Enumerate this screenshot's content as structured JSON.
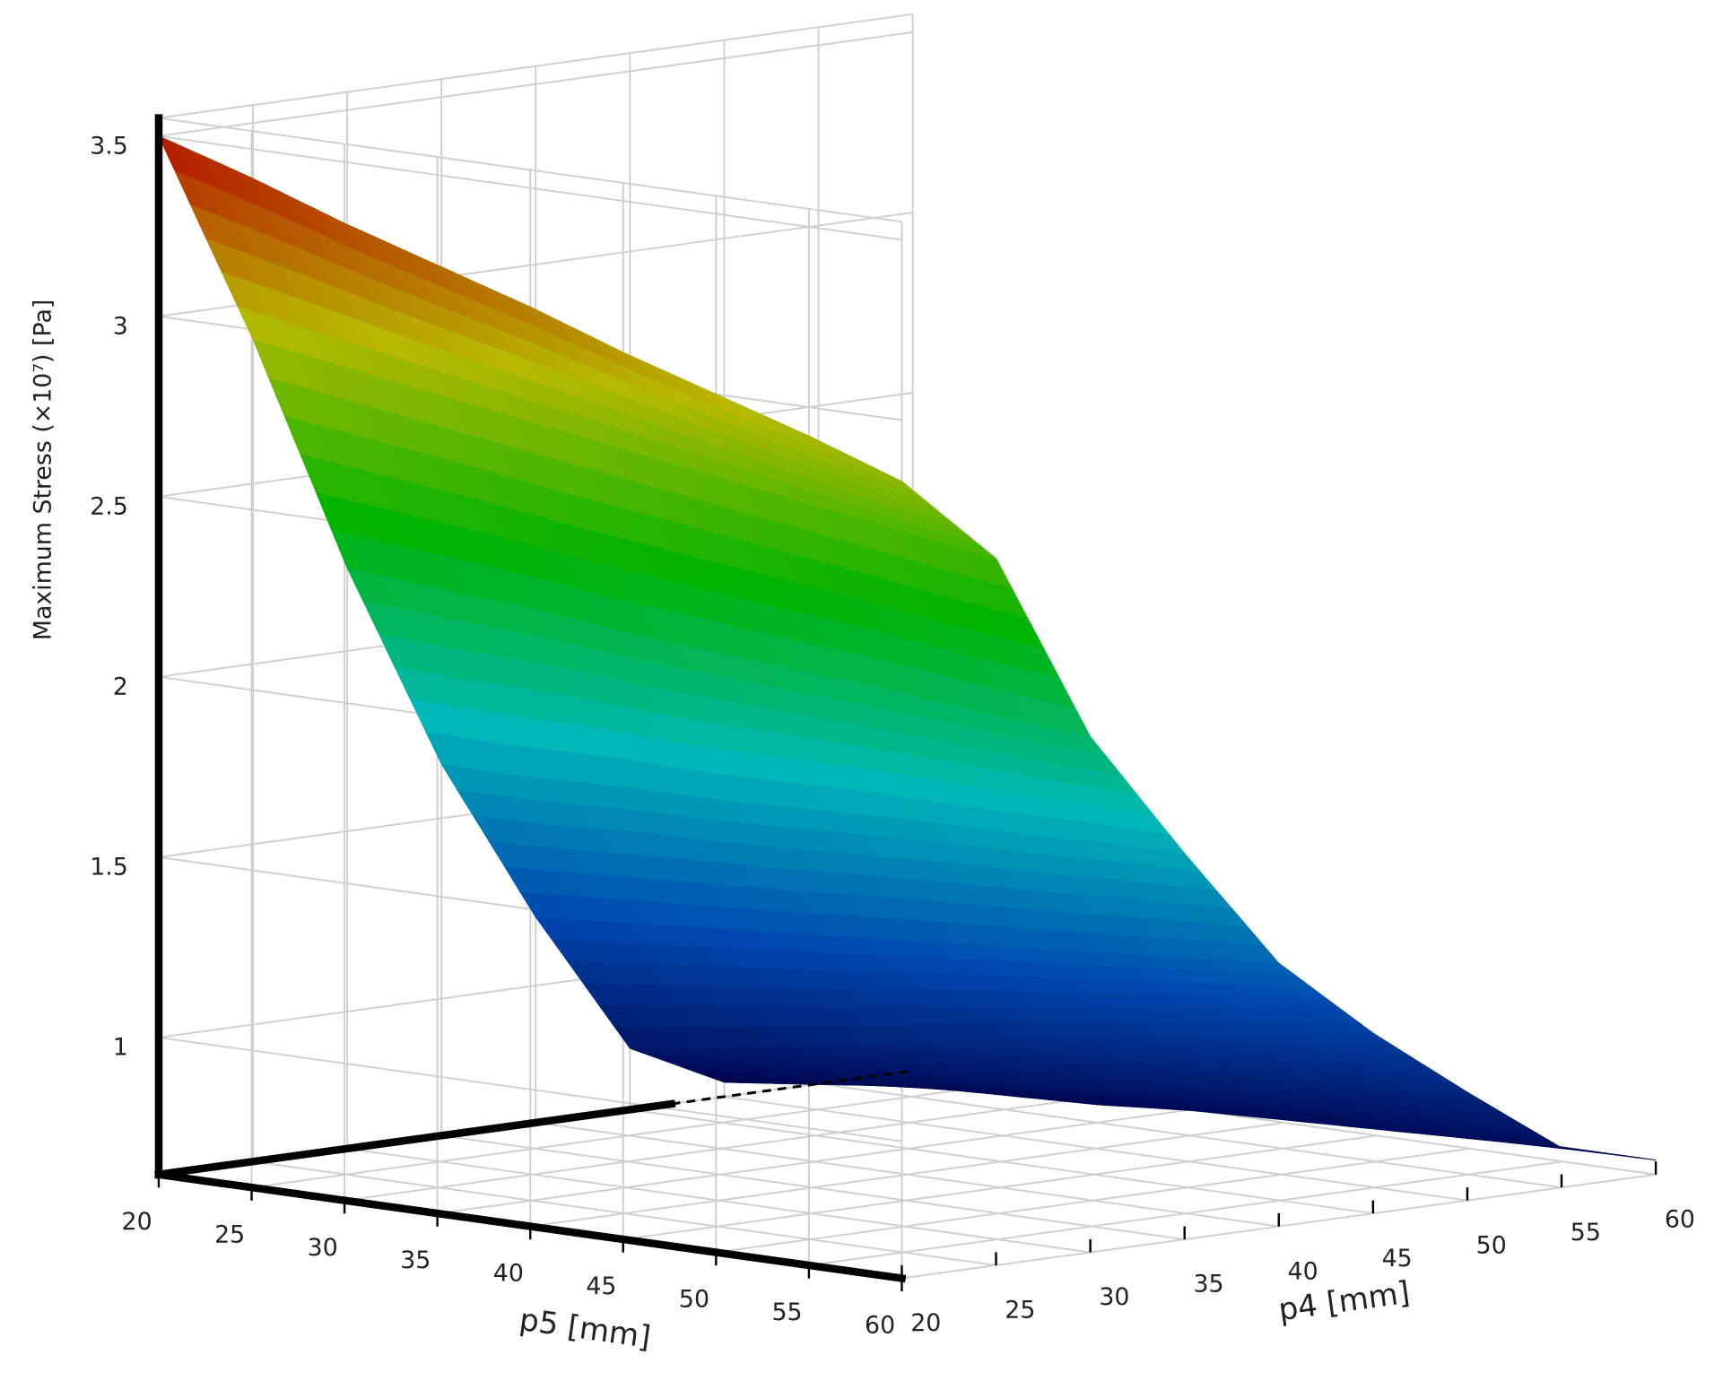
{
  "chart_data": {
    "type": "surface",
    "zlabel": "Maximum Stress (×10⁷) [Pa]",
    "xlabel": "p5 [mm]",
    "ylabel": "p4 [mm]",
    "x": [
      20,
      25,
      30,
      35,
      40,
      45,
      50,
      55,
      60
    ],
    "y": [
      20,
      25,
      30,
      35,
      40,
      45,
      50,
      55,
      60
    ],
    "z": [
      [
        3.5,
        2.9,
        2.23,
        1.65,
        1.19,
        0.79,
        0.66,
        0.64,
        0.63
      ],
      [
        3.42,
        2.86,
        2.21,
        1.65,
        1.21,
        0.83,
        0.69,
        0.65,
        0.63
      ],
      [
        3.33,
        2.82,
        2.19,
        1.66,
        1.23,
        0.87,
        0.73,
        0.66,
        0.64
      ],
      [
        3.25,
        2.78,
        2.16,
        1.66,
        1.25,
        0.91,
        0.76,
        0.67,
        0.64
      ],
      [
        3.17,
        2.74,
        2.14,
        1.67,
        1.27,
        0.96,
        0.79,
        0.69,
        0.65
      ],
      [
        3.08,
        2.7,
        2.12,
        1.68,
        1.29,
        1.0,
        0.82,
        0.7,
        0.65
      ],
      [
        3.0,
        2.66,
        2.1,
        1.68,
        1.31,
        1.04,
        0.86,
        0.71,
        0.65
      ],
      [
        2.92,
        2.62,
        2.07,
        1.69,
        1.33,
        1.08,
        0.89,
        0.72,
        0.66
      ],
      [
        2.83,
        2.58,
        2.05,
        1.69,
        1.35,
        1.12,
        0.92,
        0.73,
        0.66
      ]
    ],
    "xlim": [
      20,
      60
    ],
    "ylim": [
      20,
      60
    ],
    "zlim": [
      0.62,
      3.55
    ],
    "xticks": [
      20,
      25,
      30,
      35,
      40,
      45,
      50,
      55,
      60
    ],
    "yticks": [
      20,
      25,
      30,
      35,
      40,
      45,
      50,
      55,
      60
    ],
    "zticks": [
      1,
      1.5,
      2,
      2.5,
      3,
      3.5
    ],
    "colormap": [
      "#000048",
      "#0048b0",
      "#00b8b8",
      "#00b400",
      "#b8b800",
      "#b40000"
    ],
    "grid": true
  }
}
